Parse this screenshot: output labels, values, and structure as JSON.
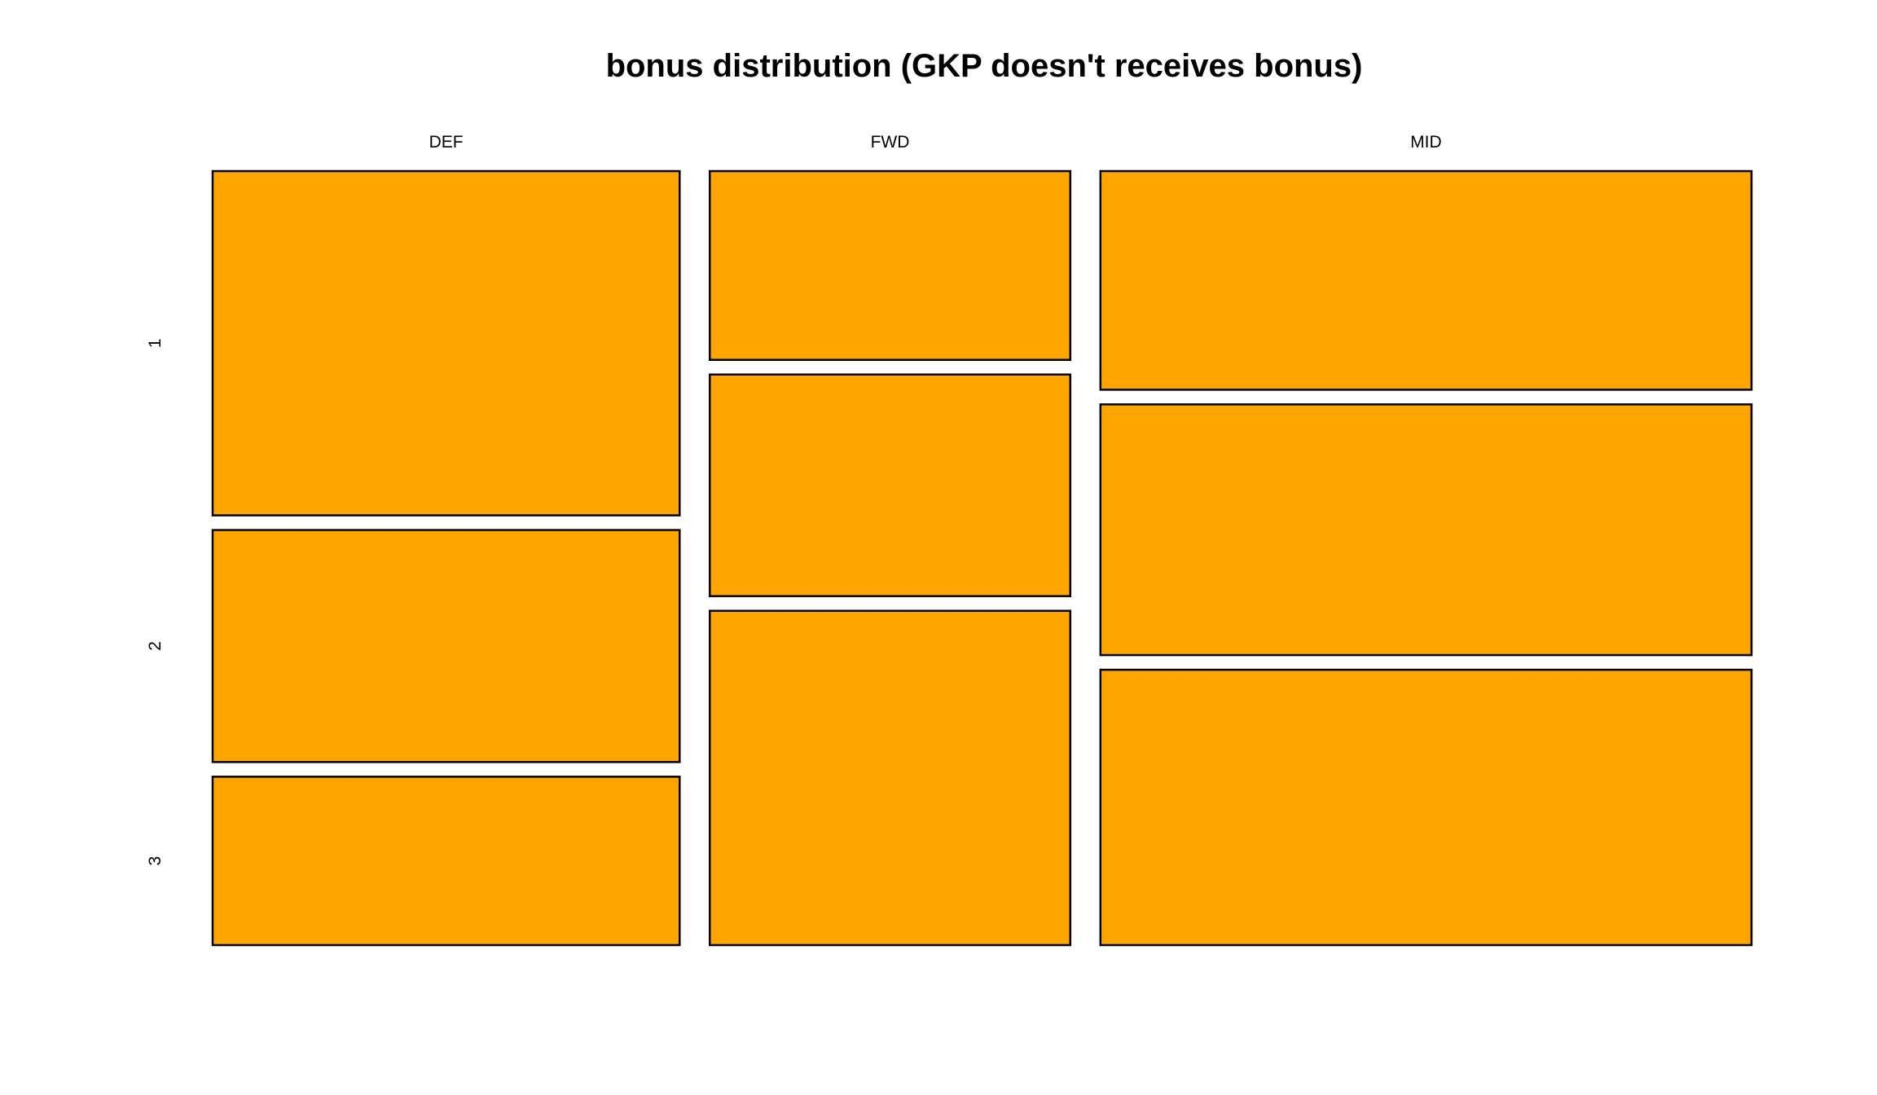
{
  "chart_data": {
    "type": "mosaic",
    "title": "bonus distribution (GKP doesn't receives bonus)",
    "xlabel": "",
    "ylabel": "",
    "columns": [
      "DEF",
      "FWD",
      "MID"
    ],
    "rows": [
      "1",
      "2",
      "3"
    ],
    "column_proportions": [
      0.307,
      0.237,
      0.428
    ],
    "cells": [
      {
        "column": "DEF",
        "row": "1",
        "proportion": 0.46
      },
      {
        "column": "DEF",
        "row": "2",
        "proportion": 0.31
      },
      {
        "column": "DEF",
        "row": "3",
        "proportion": 0.225
      },
      {
        "column": "FWD",
        "row": "1",
        "proportion": 0.253
      },
      {
        "column": "FWD",
        "row": "2",
        "proportion": 0.297
      },
      {
        "column": "FWD",
        "row": "3",
        "proportion": 0.448
      },
      {
        "column": "MID",
        "row": "1",
        "proportion": 0.293
      },
      {
        "column": "MID",
        "row": "2",
        "proportion": 0.336
      },
      {
        "column": "MID",
        "row": "3",
        "proportion": 0.369
      }
    ],
    "fill_color": "#FFA500",
    "border_color": "#000000",
    "grid": false
  }
}
